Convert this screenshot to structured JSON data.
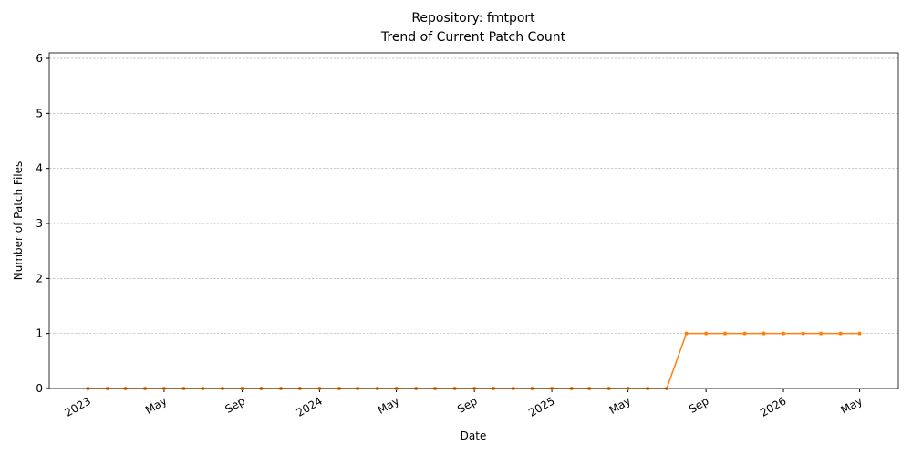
{
  "chart_data": {
    "type": "line",
    "title": "Repository: fmtport",
    "subtitle": "Trend of Current Patch Count",
    "x_label": "Date",
    "y_label": "Number of Patch Files",
    "x": [
      "2023-01",
      "2023-02",
      "2023-03",
      "2023-04",
      "2023-05",
      "2023-06",
      "2023-07",
      "2023-08",
      "2023-09",
      "2023-10",
      "2023-11",
      "2023-12",
      "2024-01",
      "2024-02",
      "2024-03",
      "2024-04",
      "2024-05",
      "2024-06",
      "2024-07",
      "2024-08",
      "2024-09",
      "2024-10",
      "2024-11",
      "2024-12",
      "2025-01",
      "2025-02",
      "2025-03",
      "2025-04",
      "2025-05",
      "2025-06",
      "2025-07",
      "2025-08",
      "2025-09",
      "2025-10",
      "2025-11",
      "2025-12",
      "2026-01",
      "2026-02",
      "2026-03",
      "2026-04",
      "2026-05"
    ],
    "values": [
      0,
      0,
      0,
      0,
      0,
      0,
      0,
      0,
      0,
      0,
      0,
      0,
      0,
      0,
      0,
      0,
      0,
      0,
      0,
      0,
      0,
      0,
      0,
      0,
      0,
      0,
      0,
      0,
      0,
      0,
      0,
      1,
      1,
      1,
      1,
      1,
      1,
      1,
      1,
      1,
      1
    ],
    "color": "#ff7f0e",
    "xlim": [
      "2022-11",
      "2026-07"
    ],
    "xticks": [
      {
        "value": "2023-01",
        "label": "2023"
      },
      {
        "value": "2023-05",
        "label": "May"
      },
      {
        "value": "2023-09",
        "label": "Sep"
      },
      {
        "value": "2024-01",
        "label": "2024"
      },
      {
        "value": "2024-05",
        "label": "May"
      },
      {
        "value": "2024-09",
        "label": "Sep"
      },
      {
        "value": "2025-01",
        "label": "2025"
      },
      {
        "value": "2025-05",
        "label": "May"
      },
      {
        "value": "2025-09",
        "label": "Sep"
      },
      {
        "value": "2026-01",
        "label": "2026"
      },
      {
        "value": "2026-05",
        "label": "May"
      }
    ],
    "ylim": [
      0,
      6.1
    ],
    "yticks": [
      0,
      1,
      2,
      3,
      4,
      5,
      6
    ],
    "grid": "y"
  }
}
